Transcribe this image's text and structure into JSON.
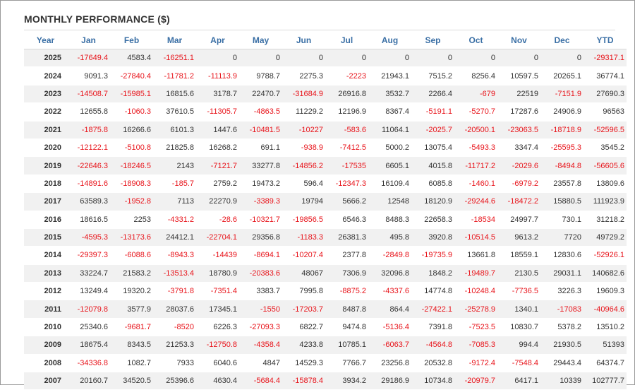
{
  "title": "MONTHLY PERFORMANCE ($)",
  "columns": [
    "Year",
    "Jan",
    "Feb",
    "Mar",
    "Apr",
    "May",
    "Jun",
    "Jul",
    "Aug",
    "Sep",
    "Oct",
    "Nov",
    "Dec",
    "YTD"
  ],
  "rows": [
    [
      "2025",
      "-17649.4",
      "4583.4",
      "-16251.1",
      "0",
      "0",
      "0",
      "0",
      "0",
      "0",
      "0",
      "0",
      "0",
      "-29317.1"
    ],
    [
      "2024",
      "9091.3",
      "-27840.4",
      "-11781.2",
      "-11113.9",
      "9788.7",
      "2275.3",
      "-2223",
      "21943.1",
      "7515.2",
      "8256.4",
      "10597.5",
      "20265.1",
      "36774.1"
    ],
    [
      "2023",
      "-14508.7",
      "-15985.1",
      "16815.6",
      "3178.7",
      "22470.7",
      "-31684.9",
      "26916.8",
      "3532.7",
      "2266.4",
      "-679",
      "22519",
      "-7151.9",
      "27690.3"
    ],
    [
      "2022",
      "12655.8",
      "-1060.3",
      "37610.5",
      "-11305.7",
      "-4863.5",
      "11229.2",
      "12196.9",
      "8367.4",
      "-5191.1",
      "-5270.7",
      "17287.6",
      "24906.9",
      "96563"
    ],
    [
      "2021",
      "-1875.8",
      "16266.6",
      "6101.3",
      "1447.6",
      "-10481.5",
      "-10227",
      "-583.6",
      "11064.1",
      "-2025.7",
      "-20500.1",
      "-23063.5",
      "-18718.9",
      "-52596.5"
    ],
    [
      "2020",
      "-12122.1",
      "-5100.8",
      "21825.8",
      "16268.2",
      "691.1",
      "-938.9",
      "-7412.5",
      "5000.2",
      "13075.4",
      "-5493.3",
      "3347.4",
      "-25595.3",
      "3545.2"
    ],
    [
      "2019",
      "-22646.3",
      "-18246.5",
      "2143",
      "-7121.7",
      "33277.8",
      "-14856.2",
      "-17535",
      "6605.1",
      "4015.8",
      "-11717.2",
      "-2029.6",
      "-8494.8",
      "-56605.6"
    ],
    [
      "2018",
      "-14891.6",
      "-18908.3",
      "-185.7",
      "2759.2",
      "19473.2",
      "596.4",
      "-12347.3",
      "16109.4",
      "6085.8",
      "-1460.1",
      "-6979.2",
      "23557.8",
      "13809.6"
    ],
    [
      "2017",
      "63589.3",
      "-1952.8",
      "7113",
      "22270.9",
      "-3389.3",
      "19794",
      "5666.2",
      "12548",
      "18120.9",
      "-29244.6",
      "-18472.2",
      "15880.5",
      "111923.9"
    ],
    [
      "2016",
      "18616.5",
      "2253",
      "-4331.2",
      "-28.6",
      "-10321.7",
      "-19856.5",
      "6546.3",
      "8488.3",
      "22658.3",
      "-18534",
      "24997.7",
      "730.1",
      "31218.2"
    ],
    [
      "2015",
      "-4595.3",
      "-13173.6",
      "24412.1",
      "-22704.1",
      "29356.8",
      "-1183.3",
      "26381.3",
      "495.8",
      "3920.8",
      "-10514.5",
      "9613.2",
      "7720",
      "49729.2"
    ],
    [
      "2014",
      "-29397.3",
      "-6088.6",
      "-8943.3",
      "-14439",
      "-8694.1",
      "-10207.4",
      "2377.8",
      "-2849.8",
      "-19735.9",
      "13661.8",
      "18559.1",
      "12830.6",
      "-52926.1"
    ],
    [
      "2013",
      "33224.7",
      "21583.2",
      "-13513.4",
      "18780.9",
      "-20383.6",
      "48067",
      "7306.9",
      "32096.8",
      "1848.2",
      "-19489.7",
      "2130.5",
      "29031.1",
      "140682.6"
    ],
    [
      "2012",
      "13249.4",
      "19320.2",
      "-3791.8",
      "-7351.4",
      "3383.7",
      "7995.8",
      "-8875.2",
      "-4337.6",
      "14774.8",
      "-10248.4",
      "-7736.5",
      "3226.3",
      "19609.3"
    ],
    [
      "2011",
      "-12079.8",
      "3577.9",
      "28037.6",
      "17345.1",
      "-1550",
      "-17203.7",
      "8487.8",
      "864.4",
      "-27422.1",
      "-25278.9",
      "1340.1",
      "-17083",
      "-40964.6"
    ],
    [
      "2010",
      "25340.6",
      "-9681.7",
      "-8520",
      "6226.3",
      "-27093.3",
      "6822.7",
      "9474.8",
      "-5136.4",
      "7391.8",
      "-7523.5",
      "10830.7",
      "5378.2",
      "13510.2"
    ],
    [
      "2009",
      "18675.4",
      "8343.5",
      "21253.3",
      "-12750.8",
      "-4358.4",
      "4233.8",
      "10785.1",
      "-6063.7",
      "-4564.8",
      "-7085.3",
      "994.4",
      "21930.5",
      "51393"
    ],
    [
      "2008",
      "-34336.8",
      "1082.7",
      "7933",
      "6040.6",
      "4847",
      "14529.3",
      "7766.7",
      "23256.8",
      "20532.8",
      "-9172.4",
      "-7548.4",
      "29443.4",
      "64374.7"
    ],
    [
      "2007",
      "20160.7",
      "34520.5",
      "25396.6",
      "4630.4",
      "-5684.4",
      "-15878.4",
      "3934.2",
      "29186.9",
      "10734.8",
      "-20979.7",
      "6417.1",
      "10339",
      "102777.7"
    ]
  ],
  "colors": {
    "header": "#3a6fa5",
    "negative": "#e8141b",
    "positive": "#333333",
    "stripe": "#f1f1f1"
  }
}
